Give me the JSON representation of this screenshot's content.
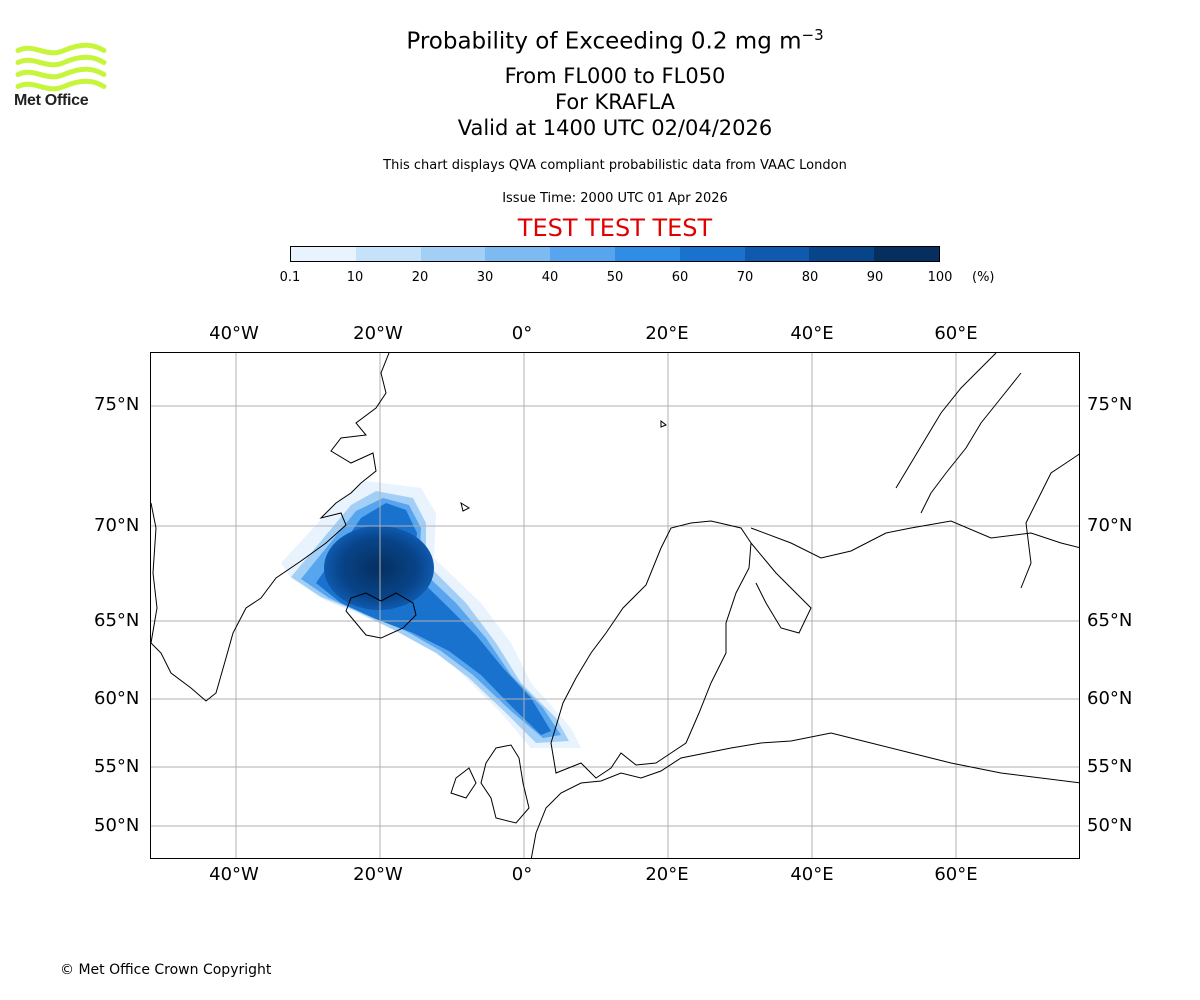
{
  "logo": {
    "text": "Met Office",
    "color": "#c7f53b"
  },
  "title": {
    "line1_prefix": "Probability of Exceeding 0.2 mg m",
    "line1_sup": "−3",
    "line2": "From FL000 to FL050",
    "line3": "For KRAFLA",
    "line4": "Valid at 1400 UTC 02/04/2026"
  },
  "subtitle": "This chart displays QVA compliant probabilistic data from VAAC London",
  "issue_time": "Issue Time: 2000 UTC 01 Apr 2026",
  "test_banner": "TEST TEST TEST",
  "colorbar": {
    "ticks": [
      "0.1",
      "10",
      "20",
      "30",
      "40",
      "50",
      "60",
      "70",
      "80",
      "90",
      "100"
    ],
    "unit": "(%)",
    "colors": [
      "#e8f3fd",
      "#c6e2fa",
      "#a3cff6",
      "#7dbaf2",
      "#56a5ee",
      "#2f8de6",
      "#1a72cf",
      "#0f5aae",
      "#084489",
      "#062f60"
    ]
  },
  "map": {
    "lon_labels_top": [
      "40°W",
      "20°W",
      "0°",
      "20°E",
      "40°E",
      "60°E"
    ],
    "lon_labels_bottom": [
      "40°W",
      "20°W",
      "0°",
      "20°E",
      "40°E",
      "60°E"
    ],
    "lat_labels_left": [
      "75°N",
      "70°N",
      "65°N",
      "60°N",
      "55°N",
      "50°N"
    ],
    "lat_labels_right": [
      "75°N",
      "70°N",
      "65°N",
      "60°N",
      "55°N",
      "50°N"
    ],
    "gridline_color": "#b0b0b0",
    "coastline_color": "#000000"
  },
  "copyright": "© Met Office Crown Copyright"
}
